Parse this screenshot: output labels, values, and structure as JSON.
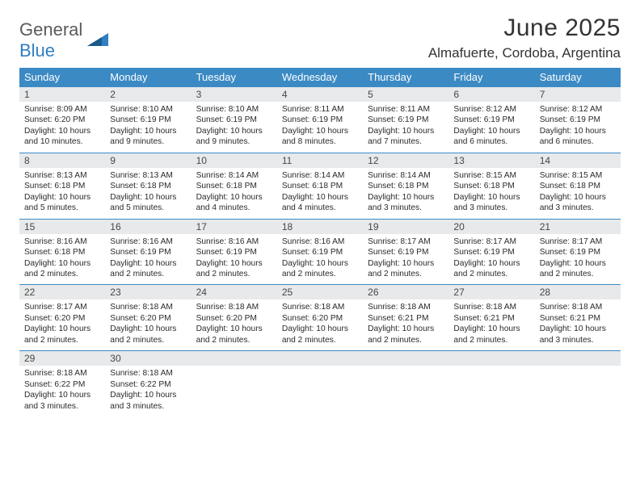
{
  "logo": {
    "word1": "General",
    "word2": "Blue"
  },
  "header": {
    "month_title": "June 2025",
    "location": "Almafuerte, Cordoba, Argentina"
  },
  "style": {
    "header_bg": "#3b8ac4",
    "header_text": "#ffffff",
    "daynum_bg": "#e8e9ea",
    "daynum_text": "#474747",
    "row_border": "#3b8ac4",
    "body_text": "#2a2a2a",
    "title_color": "#333333",
    "logo_gray": "#5a5a5a",
    "logo_blue": "#2f7fc2",
    "title_fontsize": 30,
    "location_fontsize": 17,
    "weekday_fontsize": 13,
    "daynum_fontsize": 12,
    "info_fontsize": 10.2
  },
  "weekdays": [
    "Sunday",
    "Monday",
    "Tuesday",
    "Wednesday",
    "Thursday",
    "Friday",
    "Saturday"
  ],
  "days": [
    {
      "n": 1,
      "sunrise": "8:09 AM",
      "sunset": "6:20 PM",
      "daylight": "10 hours and 10 minutes."
    },
    {
      "n": 2,
      "sunrise": "8:10 AM",
      "sunset": "6:19 PM",
      "daylight": "10 hours and 9 minutes."
    },
    {
      "n": 3,
      "sunrise": "8:10 AM",
      "sunset": "6:19 PM",
      "daylight": "10 hours and 9 minutes."
    },
    {
      "n": 4,
      "sunrise": "8:11 AM",
      "sunset": "6:19 PM",
      "daylight": "10 hours and 8 minutes."
    },
    {
      "n": 5,
      "sunrise": "8:11 AM",
      "sunset": "6:19 PM",
      "daylight": "10 hours and 7 minutes."
    },
    {
      "n": 6,
      "sunrise": "8:12 AM",
      "sunset": "6:19 PM",
      "daylight": "10 hours and 6 minutes."
    },
    {
      "n": 7,
      "sunrise": "8:12 AM",
      "sunset": "6:19 PM",
      "daylight": "10 hours and 6 minutes."
    },
    {
      "n": 8,
      "sunrise": "8:13 AM",
      "sunset": "6:18 PM",
      "daylight": "10 hours and 5 minutes."
    },
    {
      "n": 9,
      "sunrise": "8:13 AM",
      "sunset": "6:18 PM",
      "daylight": "10 hours and 5 minutes."
    },
    {
      "n": 10,
      "sunrise": "8:14 AM",
      "sunset": "6:18 PM",
      "daylight": "10 hours and 4 minutes."
    },
    {
      "n": 11,
      "sunrise": "8:14 AM",
      "sunset": "6:18 PM",
      "daylight": "10 hours and 4 minutes."
    },
    {
      "n": 12,
      "sunrise": "8:14 AM",
      "sunset": "6:18 PM",
      "daylight": "10 hours and 3 minutes."
    },
    {
      "n": 13,
      "sunrise": "8:15 AM",
      "sunset": "6:18 PM",
      "daylight": "10 hours and 3 minutes."
    },
    {
      "n": 14,
      "sunrise": "8:15 AM",
      "sunset": "6:18 PM",
      "daylight": "10 hours and 3 minutes."
    },
    {
      "n": 15,
      "sunrise": "8:16 AM",
      "sunset": "6:18 PM",
      "daylight": "10 hours and 2 minutes."
    },
    {
      "n": 16,
      "sunrise": "8:16 AM",
      "sunset": "6:19 PM",
      "daylight": "10 hours and 2 minutes."
    },
    {
      "n": 17,
      "sunrise": "8:16 AM",
      "sunset": "6:19 PM",
      "daylight": "10 hours and 2 minutes."
    },
    {
      "n": 18,
      "sunrise": "8:16 AM",
      "sunset": "6:19 PM",
      "daylight": "10 hours and 2 minutes."
    },
    {
      "n": 19,
      "sunrise": "8:17 AM",
      "sunset": "6:19 PM",
      "daylight": "10 hours and 2 minutes."
    },
    {
      "n": 20,
      "sunrise": "8:17 AM",
      "sunset": "6:19 PM",
      "daylight": "10 hours and 2 minutes."
    },
    {
      "n": 21,
      "sunrise": "8:17 AM",
      "sunset": "6:19 PM",
      "daylight": "10 hours and 2 minutes."
    },
    {
      "n": 22,
      "sunrise": "8:17 AM",
      "sunset": "6:20 PM",
      "daylight": "10 hours and 2 minutes."
    },
    {
      "n": 23,
      "sunrise": "8:18 AM",
      "sunset": "6:20 PM",
      "daylight": "10 hours and 2 minutes."
    },
    {
      "n": 24,
      "sunrise": "8:18 AM",
      "sunset": "6:20 PM",
      "daylight": "10 hours and 2 minutes."
    },
    {
      "n": 25,
      "sunrise": "8:18 AM",
      "sunset": "6:20 PM",
      "daylight": "10 hours and 2 minutes."
    },
    {
      "n": 26,
      "sunrise": "8:18 AM",
      "sunset": "6:21 PM",
      "daylight": "10 hours and 2 minutes."
    },
    {
      "n": 27,
      "sunrise": "8:18 AM",
      "sunset": "6:21 PM",
      "daylight": "10 hours and 2 minutes."
    },
    {
      "n": 28,
      "sunrise": "8:18 AM",
      "sunset": "6:21 PM",
      "daylight": "10 hours and 3 minutes."
    },
    {
      "n": 29,
      "sunrise": "8:18 AM",
      "sunset": "6:22 PM",
      "daylight": "10 hours and 3 minutes."
    },
    {
      "n": 30,
      "sunrise": "8:18 AM",
      "sunset": "6:22 PM",
      "daylight": "10 hours and 3 minutes."
    }
  ],
  "labels": {
    "sunrise": "Sunrise: ",
    "sunset": "Sunset: ",
    "daylight": "Daylight: "
  },
  "first_weekday_index": 0,
  "total_cells": 35
}
